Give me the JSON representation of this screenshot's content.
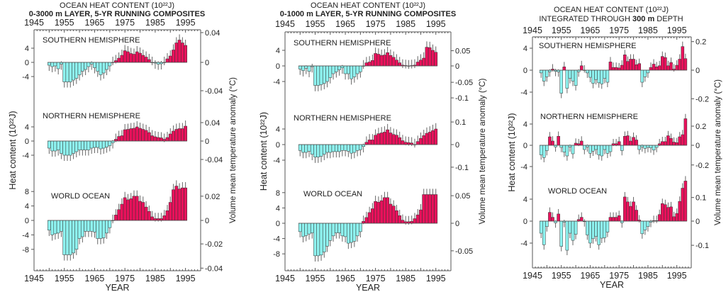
{
  "colors": {
    "positive": "#e8115b",
    "negative": "#8ef3f0",
    "bar_edge": "#333333",
    "error_bar": "#666666",
    "axis": "#555555"
  },
  "chart_data": [
    {
      "type": "bar",
      "title": "OCEAN HEAT CONTENT (10²²J)",
      "subtitle_pre": "0-3000 m LAYER, 5-YR RUNNING COMPOSITES",
      "subtitle_bold": "",
      "subtitle_post": "",
      "xlabel": "YEAR",
      "ylabel": "Heat content (10²²J)",
      "y2label": "Volume mean temperature anomaly (°C)",
      "x_ticks": [
        "1945",
        "1955",
        "1965",
        "1975",
        "1985",
        "1995"
      ],
      "x_range": [
        1945,
        2000
      ],
      "first_year": 1950,
      "error": 1.6,
      "subplots": [
        {
          "name": "SOUTHERN HEMISPHERE",
          "y_ticks": [
            4,
            0,
            -4
          ],
          "y2_ticks": [
            {
              "label": "0.04",
              "value": 8.4
            },
            {
              "label": "0",
              "value": 0
            },
            {
              "label": "-0.04",
              "value": -8
            }
          ],
          "values": [
            -0.8,
            -1.2,
            -1,
            -1.8,
            -0.5,
            -5.5,
            -5.5,
            -5.5,
            -5,
            -4.5,
            -3.5,
            -2.5,
            -2,
            -1.2,
            -0.5,
            -1.5,
            -2.5,
            -3.5,
            -3,
            -2,
            -1,
            0,
            0.5,
            1.2,
            2,
            3.3,
            3,
            2.5,
            2.3,
            3,
            2.6,
            2,
            1.5,
            0.8,
            0,
            -0.2,
            -0.5,
            -0.4,
            0,
            1,
            1.8,
            3.5,
            5.5,
            6.3,
            5.5,
            4.8
          ]
        },
        {
          "name": "NORTHERN HEMISPHERE",
          "y_ticks": [
            4,
            0,
            -4
          ],
          "y2_ticks": [
            {
              "label": "0.04",
              "value": 5.2
            },
            {
              "label": "0",
              "value": 0
            },
            {
              "label": "-0.04",
              "value": -5.2
            }
          ],
          "values": [
            -2,
            -2.8,
            -2.8,
            -2.5,
            -3.5,
            -4,
            -4,
            -4,
            -3.5,
            -3,
            -2.5,
            -2.5,
            -2.5,
            -2.5,
            -2,
            -1.8,
            -1.8,
            -2.2,
            -2,
            -1.7,
            -1.3,
            -0.5,
            0.5,
            1.3,
            1.5,
            3.2,
            3.3,
            3.5,
            3.6,
            4,
            3.6,
            3.3,
            3,
            2.4,
            1.5,
            1.2,
            1,
            0.9,
            0.5,
            1,
            2,
            2.8,
            3.3,
            3.5,
            3.5,
            4.2
          ]
        },
        {
          "name": "WORLD OCEAN",
          "y_ticks": [
            8,
            4,
            0,
            -4,
            -8
          ],
          "y2_ticks": [
            {
              "label": "0.02",
              "value": 6.7
            },
            {
              "label": "0",
              "value": 0
            },
            {
              "label": "-0.02",
              "value": -6.5
            },
            {
              "label": "-0.04",
              "value": -13.2
            }
          ],
          "values": [
            -2.7,
            -4,
            -3.7,
            -3.5,
            -3,
            -9.5,
            -9.5,
            -9.5,
            -9,
            -8,
            -5,
            -4.5,
            -3,
            -3,
            -3,
            -3.2,
            -5,
            -5,
            -4.8,
            -3.5,
            -2,
            0,
            1.5,
            3,
            4.5,
            6.3,
            5.7,
            6,
            6.7,
            6.7,
            5.3,
            5,
            3.7,
            2.5,
            1,
            0.5,
            0.5,
            0.5,
            1.3,
            2.7,
            5,
            8.5,
            9.5,
            8.7,
            9,
            9
          ]
        }
      ]
    },
    {
      "type": "bar",
      "title": "OCEAN HEAT CONTENT (10²²J)",
      "subtitle_pre": "0-1000 m LAYER, 5-YR RUNNING COMPOSITES",
      "subtitle_bold": "",
      "subtitle_post": "",
      "xlabel": "YEAR",
      "ylabel": "Heat content (10²²J)",
      "y2label": "Volume mean temperature anomaly (°C)",
      "x_ticks": [
        "1945",
        "1955",
        "1965",
        "1975",
        "1985",
        "1995"
      ],
      "x_range": [
        1945,
        2000
      ],
      "first_year": 1950,
      "error": 1.5,
      "subplots": [
        {
          "name": "SOUTHERN HEMISPHERE",
          "y_ticks": [
            4,
            0,
            -4
          ],
          "y2_ticks": [
            {
              "label": "0.05",
              "value": 3.9
            },
            {
              "label": "0",
              "value": 0
            },
            {
              "label": "-0.05",
              "value": -4.2
            },
            {
              "label": "-0.1",
              "value": -8.2
            }
          ],
          "values": [
            -0.8,
            -1.2,
            -0.6,
            -1.4,
            -0.2,
            -5,
            -5,
            -4.8,
            -4.5,
            -4,
            -3,
            -2,
            -1.5,
            -1,
            -0.5,
            -2,
            -2,
            -3.3,
            -2.8,
            -2,
            -1.5,
            0,
            0.8,
            1,
            1.4,
            3.2,
            3,
            2.7,
            2.8,
            3.4,
            2.7,
            2.2,
            1.5,
            0.8,
            0.2,
            0.1,
            0,
            0.1,
            0.2,
            1,
            1.5,
            2,
            4.8,
            4.7,
            4,
            3.5
          ]
        },
        {
          "name": "NORTHERN HEMISPHERE",
          "y_ticks": [
            4,
            0,
            -4
          ],
          "y2_ticks": [
            {
              "label": "0.1",
              "value": 5.8
            },
            {
              "label": "0",
              "value": 0
            },
            {
              "label": "-0.1",
              "value": -5.8
            }
          ],
          "values": [
            -1.5,
            -2,
            -2,
            -1.7,
            -2.5,
            -3.2,
            -3.2,
            -3,
            -2.5,
            -2,
            -2,
            -1.8,
            -1.8,
            -1.8,
            -1.5,
            -1.5,
            -1.7,
            -2.2,
            -2,
            -1.5,
            -1.3,
            -0.5,
            0.6,
            1.2,
            1.2,
            2.4,
            2.8,
            3,
            3.2,
            3.8,
            3,
            2.6,
            2.4,
            1.8,
            1,
            0.6,
            0.5,
            0.4,
            0,
            0.8,
            1.6,
            2.3,
            2.9,
            3.2,
            3.6,
            4
          ]
        },
        {
          "name": "WORLD OCEAN",
          "y_ticks": [
            8,
            4,
            0,
            -4,
            -8
          ],
          "y2_ticks": [
            {
              "label": "0.05",
              "value": 7.2
            },
            {
              "label": "0",
              "value": 0
            },
            {
              "label": "-0.05",
              "value": -7.2
            }
          ],
          "values": [
            -2.2,
            -3.5,
            -3.2,
            -2.8,
            -2.5,
            -8.5,
            -8.5,
            -8.3,
            -7.5,
            -6,
            -4.5,
            -3.3,
            -2.5,
            -2.5,
            -3.3,
            -3.5,
            -5.2,
            -5,
            -4.7,
            -3.3,
            -2.2,
            0.5,
            1.5,
            2.8,
            3.8,
            5.7,
            5.5,
            5.9,
            6.7,
            6.7,
            5,
            4.5,
            3.3,
            2,
            0.8,
            0.4,
            0.4,
            0.5,
            1.2,
            2.2,
            3.5,
            7.5,
            7.5,
            7.5,
            7.5,
            7.5
          ]
        }
      ]
    },
    {
      "type": "bar",
      "title": "OCEAN HEAT CONTENT (10²²J)",
      "subtitle_pre": "INTEGRATED THROUGH ",
      "subtitle_bold": "300 m",
      "subtitle_post": " DEPTH",
      "xlabel": "YEAR",
      "ylabel": "Heat content (10²²J)",
      "y2label": "Volume mean temperature anomaly (°C)",
      "x_ticks": [
        "1945",
        "1955",
        "1965",
        "1975",
        "1985",
        "1995"
      ],
      "x_range": [
        1945,
        2000
      ],
      "first_year": 1948,
      "error": 0.9,
      "subplots": [
        {
          "name": "SOUTHERN HEMISPHERE",
          "y_ticks": [
            4,
            0,
            -4
          ],
          "y2_ticks": [
            {
              "label": "0.2",
              "value": 5.2
            },
            {
              "label": "0",
              "value": 0
            },
            {
              "label": "-0.2",
              "value": -5.2
            }
          ],
          "values": [
            -0.5,
            -2,
            -1.2,
            -0.3,
            0.2,
            -0.2,
            -0.3,
            -4.2,
            0.6,
            -3.3,
            -1.5,
            -2,
            -2.8,
            -0.3,
            0.8,
            0,
            -0.5,
            -1.3,
            -2.4,
            -1.7,
            -2.3,
            -2.5,
            -1.5,
            -2.2,
            1.5,
            0.5,
            0.5,
            0.4,
            0.9,
            2.8,
            1.6,
            2,
            2,
            1,
            1.2,
            -2.2,
            -1.2,
            -0.5,
            0.5,
            1.1,
            0.6,
            0.8,
            2.5,
            2.3,
            0.8,
            1.4,
            0.2,
            0.9,
            2,
            4.3,
            2.1
          ]
        },
        {
          "name": "NORTHERN HEMISPHERE",
          "y_ticks": [
            4,
            0,
            -4
          ],
          "y2_ticks": [
            {
              "label": "0.2",
              "value": 3.6
            },
            {
              "label": "0",
              "value": 0
            },
            {
              "label": "-0.2",
              "value": -3.7
            }
          ],
          "values": [
            -1.8,
            -2.3,
            -1,
            1.6,
            0.8,
            -0.3,
            1.7,
            -0.4,
            -1.3,
            -2,
            -0.3,
            -1.6,
            0.4,
            0.3,
            0.8,
            -0.8,
            -0.3,
            -1.5,
            -1.1,
            -0.8,
            -1.8,
            -2,
            -0.8,
            -1.5,
            -1.2,
            0.3,
            0.3,
            0.7,
            -1,
            1.7,
            1.8,
            0.8,
            1.5,
            1,
            -0.8,
            -0.3,
            -0.6,
            -0.4,
            -0.5,
            -0.9,
            -0.4,
            0.3,
            0.7,
            0.7,
            1.8,
            1.3,
            0.6,
            0.5,
            1.6,
            2,
            5
          ]
        },
        {
          "name": "WORLD OCEAN",
          "y_ticks": [
            4,
            0,
            -4
          ],
          "y2_ticks": [
            {
              "label": "0.1",
              "value": 4.3
            },
            {
              "label": "0",
              "value": 0
            },
            {
              "label": "-0.1",
              "value": -4.4
            }
          ],
          "values": [
            -2.2,
            -4.3,
            -1,
            1.6,
            0.7,
            -0.3,
            1.3,
            -4.6,
            -0.2,
            -5.3,
            -2.2,
            -3.5,
            -2.4,
            0.3,
            0.7,
            -0.1,
            -2.5,
            -4,
            -3.2,
            -2.8,
            -4.3,
            -3.1,
            -3,
            -2,
            0.7,
            0.7,
            0.7,
            1,
            -0.3,
            4.4,
            3.5,
            2.7,
            3.5,
            2,
            0.2,
            -2.3,
            -1.6,
            -1,
            -0.2,
            0.1,
            0.1,
            1.2,
            3.2,
            3,
            2.5,
            2.6,
            0.8,
            1.4,
            3.6,
            6,
            7.3
          ]
        }
      ]
    }
  ]
}
